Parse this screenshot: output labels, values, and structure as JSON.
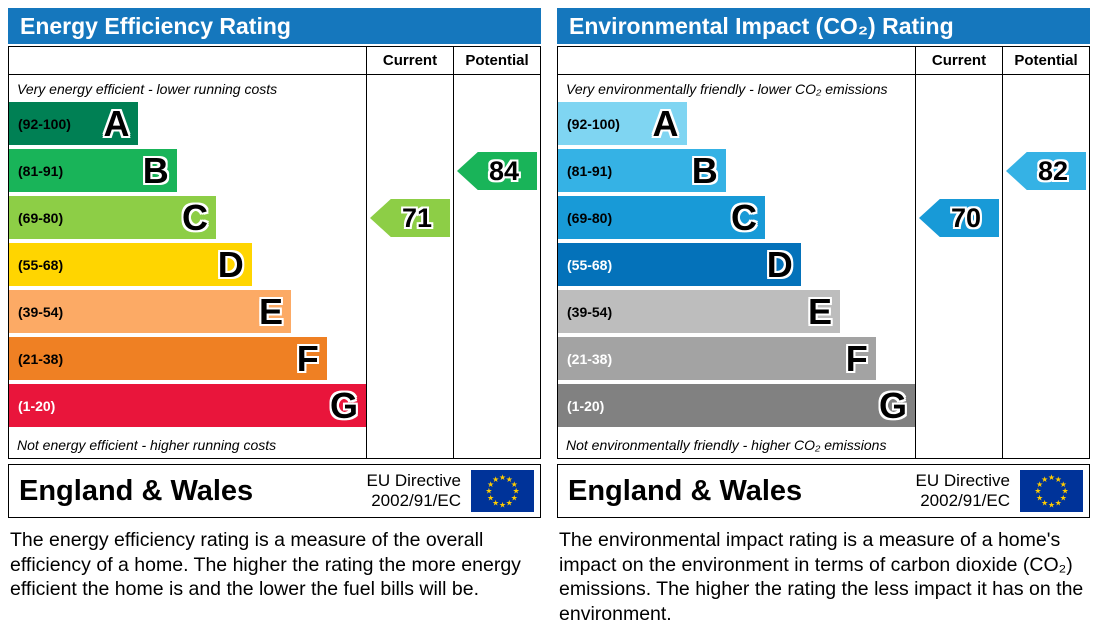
{
  "eu_flag": {
    "background": "#003399",
    "star_color": "#ffcc00"
  },
  "chart_data": [
    {
      "type": "bar",
      "title": "Energy Efficiency Rating",
      "header_color": "#1577bd",
      "column_headers": [
        "Current",
        "Potential"
      ],
      "top_caption": "Very energy efficient - lower running costs",
      "bottom_caption": "Not energy efficient - higher running costs",
      "bands": [
        {
          "letter": "A",
          "range_label": "(92-100)",
          "min": 92,
          "max": 100,
          "color": "#008054",
          "width_pct": 36,
          "label_color": "#000000"
        },
        {
          "letter": "B",
          "range_label": "(81-91)",
          "min": 81,
          "max": 91,
          "color": "#19b459",
          "width_pct": 47,
          "label_color": "#000000"
        },
        {
          "letter": "C",
          "range_label": "(69-80)",
          "min": 69,
          "max": 80,
          "color": "#8dce46",
          "width_pct": 58,
          "label_color": "#000000"
        },
        {
          "letter": "D",
          "range_label": "(55-68)",
          "min": 55,
          "max": 68,
          "color": "#ffd500",
          "width_pct": 68,
          "label_color": "#000000"
        },
        {
          "letter": "E",
          "range_label": "(39-54)",
          "min": 39,
          "max": 54,
          "color": "#fcaa65",
          "width_pct": 79,
          "label_color": "#000000"
        },
        {
          "letter": "F",
          "range_label": "(21-38)",
          "min": 21,
          "max": 38,
          "color": "#ef8023",
          "width_pct": 89,
          "label_color": "#000000"
        },
        {
          "letter": "G",
          "range_label": "(1-20)",
          "min": 1,
          "max": 20,
          "color": "#e9153b",
          "width_pct": 100,
          "label_color": "#ffffff"
        }
      ],
      "current": {
        "value": 71,
        "band_index": 2,
        "color": "#8dce46"
      },
      "potential": {
        "value": 84,
        "band_index": 1,
        "color": "#19b459"
      },
      "footer": {
        "region": "England & Wales",
        "directive_line1": "EU Directive",
        "directive_line2": "2002/91/EC"
      },
      "description": "The energy efficiency rating is a measure of the overall efficiency of a home. The higher the rating the more energy efficient the home is and the lower the fuel bills will be."
    },
    {
      "type": "bar",
      "title": "Environmental Impact (CO₂) Rating",
      "header_color": "#1577bd",
      "column_headers": [
        "Current",
        "Potential"
      ],
      "top_caption": "Very environmentally friendly - lower CO₂ emissions",
      "bottom_caption": "Not environmentally friendly - higher CO₂ emissions",
      "bands": [
        {
          "letter": "A",
          "range_label": "(92-100)",
          "min": 92,
          "max": 100,
          "color": "#7fd5f2",
          "width_pct": 36,
          "label_color": "#000000"
        },
        {
          "letter": "B",
          "range_label": "(81-91)",
          "min": 81,
          "max": 91,
          "color": "#35b2e5",
          "width_pct": 47,
          "label_color": "#000000"
        },
        {
          "letter": "C",
          "range_label": "(69-80)",
          "min": 69,
          "max": 80,
          "color": "#189ad7",
          "width_pct": 58,
          "label_color": "#000000"
        },
        {
          "letter": "D",
          "range_label": "(55-68)",
          "min": 55,
          "max": 68,
          "color": "#0472ba",
          "width_pct": 68,
          "label_color": "#ffffff"
        },
        {
          "letter": "E",
          "range_label": "(39-54)",
          "min": 39,
          "max": 54,
          "color": "#bdbdbd",
          "width_pct": 79,
          "label_color": "#000000"
        },
        {
          "letter": "F",
          "range_label": "(21-38)",
          "min": 21,
          "max": 38,
          "color": "#a3a3a3",
          "width_pct": 89,
          "label_color": "#ffffff"
        },
        {
          "letter": "G",
          "range_label": "(1-20)",
          "min": 1,
          "max": 20,
          "color": "#818181",
          "width_pct": 100,
          "label_color": "#ffffff"
        }
      ],
      "current": {
        "value": 70,
        "band_index": 2,
        "color": "#189ad7"
      },
      "potential": {
        "value": 82,
        "band_index": 1,
        "color": "#35b2e5"
      },
      "footer": {
        "region": "England & Wales",
        "directive_line1": "EU Directive",
        "directive_line2": "2002/91/EC"
      },
      "description": "The environmental impact rating is a measure of a home's impact on the environment in terms of carbon dioxide (CO₂) emissions. The higher the rating the less impact it has on the environment."
    }
  ]
}
